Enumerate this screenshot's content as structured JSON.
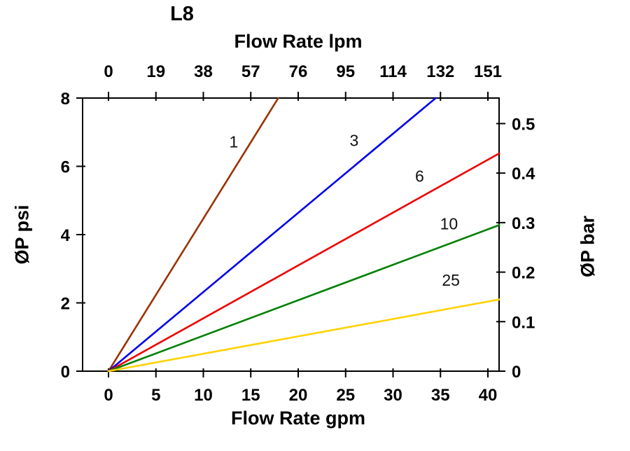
{
  "chart_data": {
    "type": "line",
    "title": "L8",
    "grid": false,
    "legend": "none (inline series labels)",
    "top_axis": {
      "label": "Flow Rate lpm",
      "tick_labels": [
        "0",
        "19",
        "38",
        "57",
        "76",
        "95",
        "114",
        "132",
        "151"
      ]
    },
    "bottom_axis": {
      "label": "Flow Rate gpm",
      "ticks": [
        0,
        5,
        10,
        15,
        20,
        25,
        30,
        35,
        40
      ],
      "range": [
        0,
        40
      ]
    },
    "left_axis": {
      "label": "ØP psi",
      "ticks": [
        0,
        2,
        4,
        6,
        8
      ],
      "range": [
        0,
        8
      ]
    },
    "right_axis": {
      "label": "ØP bar",
      "ticks": [
        0,
        0.1,
        0.2,
        0.3,
        0.4,
        0.5
      ],
      "tick_labels": [
        "0",
        "0.1",
        "0.2",
        "0.3",
        "0.4",
        "0.5"
      ],
      "psi_per_bar": 14.5038
    },
    "series": [
      {
        "name": "1",
        "color": "#993300",
        "points": [
          [
            0,
            0
          ],
          [
            17.9,
            8
          ]
        ],
        "label_pos": [
          13.2,
          6.55
        ]
      },
      {
        "name": "3",
        "color": "#0000ee",
        "points": [
          [
            0,
            0
          ],
          [
            34.5,
            8
          ]
        ],
        "label_pos": [
          25.9,
          6.6
        ]
      },
      {
        "name": "6",
        "color": "#ee0000",
        "points": [
          [
            0,
            0
          ],
          [
            41.2,
            6.38
          ]
        ],
        "label_pos": [
          32.8,
          5.55
        ]
      },
      {
        "name": "10",
        "color": "#008000",
        "points": [
          [
            0,
            0
          ],
          [
            41.2,
            4.28
          ]
        ],
        "label_pos": [
          35.9,
          4.15
        ]
      },
      {
        "name": "25",
        "color": "#ffd200",
        "points": [
          [
            0,
            0
          ],
          [
            41.2,
            2.1
          ]
        ],
        "label_pos": [
          36.1,
          2.5
        ]
      }
    ]
  }
}
